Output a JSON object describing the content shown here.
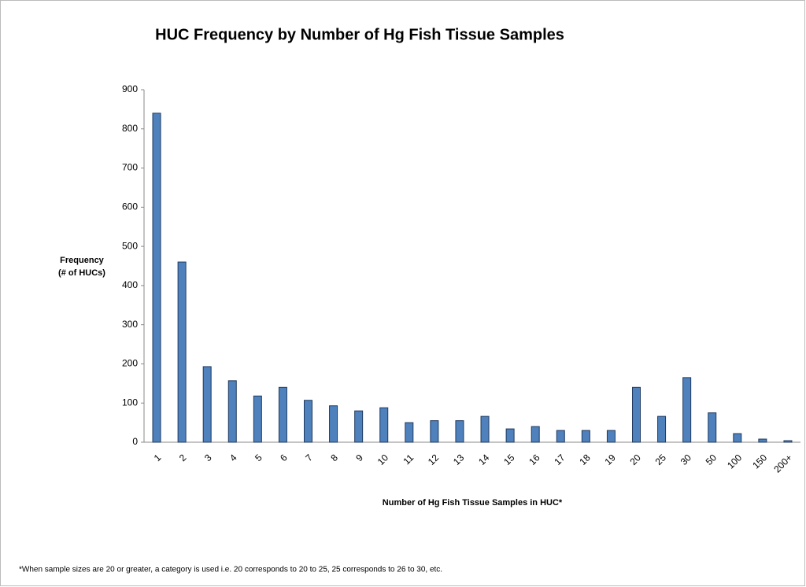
{
  "chart_data": {
    "type": "bar",
    "title": "HUC Frequency by Number of Hg Fish Tissue Samples",
    "ylabel": [
      "Frequency",
      "(# of HUCs)"
    ],
    "xlabel": "Number of Hg Fish Tissue  Samples in HUC*",
    "footnote": "*When sample sizes are 20 or greater, a category is used i.e. 20 corresponds  to 20 to 25, 25 corresponds to 26 to 30, etc.",
    "categories": [
      "1",
      "2",
      "3",
      "4",
      "5",
      "6",
      "7",
      "8",
      "9",
      "10",
      "11",
      "12",
      "13",
      "14",
      "15",
      "16",
      "17",
      "18",
      "19",
      "20",
      "25",
      "30",
      "50",
      "100",
      "150",
      "200+"
    ],
    "values": [
      840,
      460,
      193,
      157,
      118,
      140,
      107,
      93,
      80,
      88,
      50,
      55,
      55,
      66,
      34,
      40,
      30,
      30,
      30,
      140,
      66,
      165,
      75,
      22,
      8,
      4
    ],
    "color": "#4f81bd",
    "ylim": [
      0,
      900
    ],
    "yticks": [
      0,
      100,
      200,
      300,
      400,
      500,
      600,
      700,
      800,
      900
    ],
    "grid": false
  }
}
